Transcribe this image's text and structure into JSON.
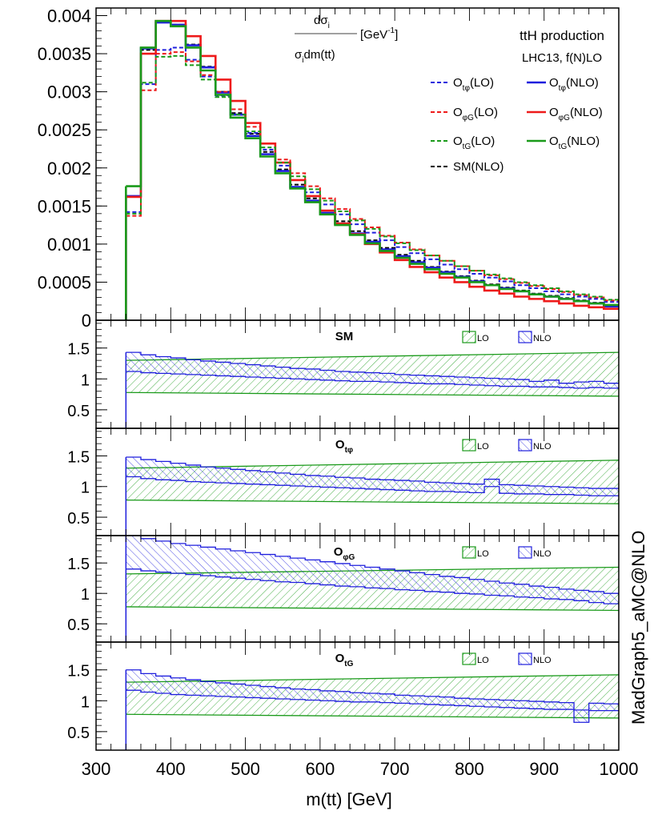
{
  "chart_data": {
    "type": "histogram",
    "xlabel": "m(tt) [GeV]",
    "xlim": [
      300,
      1000
    ],
    "x_ticks": [
      "300",
      "400",
      "500",
      "600",
      "700",
      "800",
      "900",
      "1000"
    ],
    "bin_edges": [
      340,
      360,
      380,
      400,
      420,
      440,
      460,
      480,
      500,
      520,
      540,
      560,
      580,
      600,
      620,
      640,
      660,
      680,
      700,
      720,
      740,
      760,
      780,
      800,
      820,
      840,
      860,
      880,
      900,
      920,
      940,
      960,
      980,
      1000
    ],
    "watermark": "MadGraph5_aMC@NLO",
    "main": {
      "ylabel_num": "dσ",
      "ylabel_num_sub": "i",
      "ylabel_den": "σ",
      "ylabel_den_sub": "i",
      "ylabel_den_rest": "dm(tt)",
      "ylabel_unit": "[GeV",
      "ylabel_unit_exp": "-1",
      "ylabel_unit_close": "]",
      "ylim": [
        0,
        0.0041
      ],
      "y_ticks": [
        "0",
        "0.0005",
        "0.001",
        "0.0015",
        "0.002",
        "0.0025",
        "0.003",
        "0.0035",
        "0.004"
      ],
      "title_line1": "ttH production",
      "title_line2": "LHC13, f(N)LO",
      "legend": [
        {
          "label": "O",
          "sub": "tφ",
          "suffix": "(LO)",
          "color": "#1f1fdd",
          "dash": true
        },
        {
          "label": "O",
          "sub": "tφ",
          "suffix": "(NLO)",
          "color": "#1f1fdd",
          "dash": false
        },
        {
          "label": "O",
          "sub": "φG",
          "suffix": "(LO)",
          "color": "#ee1a1a",
          "dash": true
        },
        {
          "label": "O",
          "sub": "φG",
          "suffix": "(NLO)",
          "color": "#ee1a1a",
          "dash": false
        },
        {
          "label": "O",
          "sub": "tG",
          "suffix": "(LO)",
          "color": "#1a9a1a",
          "dash": true
        },
        {
          "label": "O",
          "sub": "tG",
          "suffix": "(NLO)",
          "color": "#1a9a1a",
          "dash": false
        },
        {
          "label": "SM(NLO)",
          "sub": "",
          "suffix": "",
          "color": "#000000",
          "dash": true
        }
      ],
      "series": [
        {
          "name": "SM(NLO)",
          "color": "#000000",
          "dash": true,
          "values": [
            0.00163,
            0.00355,
            0.00392,
            0.00388,
            0.00362,
            0.00333,
            0.003,
            0.00272,
            0.00245,
            0.00221,
            0.00198,
            0.00178,
            0.0016,
            0.00144,
            0.0013,
            0.00117,
            0.00105,
            0.00095,
            0.00086,
            0.00078,
            0.0007,
            0.00064,
            0.00058,
            0.00052,
            0.00047,
            0.00043,
            0.00039,
            0.00035,
            0.00032,
            0.00029,
            0.00026,
            0.00023,
            0.00018
          ]
        },
        {
          "name": "O_tφ(LO)",
          "color": "#1f1fdd",
          "dash": true,
          "values": [
            0.00142,
            0.0031,
            0.00355,
            0.00358,
            0.00342,
            0.0032,
            0.00295,
            0.0027,
            0.00246,
            0.00224,
            0.00203,
            0.00184,
            0.00168,
            0.00152,
            0.00139,
            0.00126,
            0.00115,
            0.00105,
            0.00096,
            0.00088,
            0.0008,
            0.00073,
            0.00067,
            0.00061,
            0.00056,
            0.00051,
            0.00046,
            0.00042,
            0.00038,
            0.00034,
            0.00031,
            0.00028,
            0.00024
          ]
        },
        {
          "name": "O_tφ(NLO)",
          "color": "#1f1fdd",
          "dash": false,
          "values": [
            0.00163,
            0.00357,
            0.00391,
            0.00388,
            0.00361,
            0.00332,
            0.00299,
            0.0027,
            0.00242,
            0.00218,
            0.00196,
            0.00175,
            0.00157,
            0.00141,
            0.00127,
            0.00114,
            0.00103,
            0.00093,
            0.00084,
            0.00076,
            0.00069,
            0.00063,
            0.00057,
            0.00051,
            0.00046,
            0.00042,
            0.00038,
            0.00034,
            0.00031,
            0.00028,
            0.00025,
            0.00022,
            0.00018
          ]
        },
        {
          "name": "O_φG(LO)",
          "color": "#ee1a1a",
          "dash": true,
          "values": [
            0.00137,
            0.00302,
            0.0035,
            0.00352,
            0.0034,
            0.00322,
            0.003,
            0.00277,
            0.00254,
            0.00232,
            0.00211,
            0.00193,
            0.00176,
            0.0016,
            0.00146,
            0.00133,
            0.00122,
            0.00111,
            0.00102,
            0.00093,
            0.00085,
            0.00078,
            0.00071,
            0.00065,
            0.00059,
            0.00054,
            0.00049,
            0.00045,
            0.00041,
            0.00037,
            0.00033,
            0.0003,
            0.00026
          ]
        },
        {
          "name": "O_φG(NLO)",
          "color": "#ee1a1a",
          "dash": false,
          "values": [
            0.00162,
            0.0035,
            0.00393,
            0.00393,
            0.00373,
            0.00347,
            0.00316,
            0.00288,
            0.00259,
            0.00232,
            0.00207,
            0.00184,
            0.00163,
            0.00144,
            0.00127,
            0.00113,
            0.001,
            0.00089,
            0.00079,
            0.0007,
            0.00063,
            0.00056,
            0.0005,
            0.00044,
            0.00039,
            0.00035,
            0.00031,
            0.00028,
            0.00025,
            0.00022,
            0.00019,
            0.00017,
            0.00015
          ]
        },
        {
          "name": "O_tG(LO)",
          "color": "#1a9a1a",
          "dash": true,
          "values": [
            0.0014,
            0.00312,
            0.00346,
            0.00347,
            0.00335,
            0.00316,
            0.00293,
            0.0027,
            0.00248,
            0.00227,
            0.00207,
            0.00189,
            0.00172,
            0.00157,
            0.00143,
            0.00131,
            0.0012,
            0.0011,
            0.00101,
            0.00092,
            0.00085,
            0.00078,
            0.00071,
            0.00065,
            0.0006,
            0.00055,
            0.0005,
            0.00046,
            0.00042,
            0.00038,
            0.00034,
            0.00031,
            0.00027
          ]
        },
        {
          "name": "O_tG(NLO)",
          "color": "#1a9a1a",
          "dash": false,
          "values": [
            0.00176,
            0.00358,
            0.00393,
            0.00386,
            0.00358,
            0.00328,
            0.00296,
            0.00266,
            0.00239,
            0.00215,
            0.00193,
            0.00173,
            0.00155,
            0.00139,
            0.00125,
            0.00112,
            0.00101,
            0.00091,
            0.00082,
            0.00074,
            0.00067,
            0.00061,
            0.00056,
            0.0005,
            0.00046,
            0.00041,
            0.00038,
            0.00034,
            0.00031,
            0.00028,
            0.00025,
            0.00022,
            0.0002
          ]
        }
      ]
    },
    "ratio_panels": [
      {
        "label": "SM",
        "label_sub": "",
        "ylim": [
          0.2,
          1.95
        ],
        "y_ticks": [
          "0.5",
          "1",
          "1.5"
        ],
        "legend_lo": "LO",
        "legend_nlo": "NLO",
        "lo_band": {
          "low_start": 0.78,
          "low_end": 0.72,
          "high_start": 1.3,
          "high_end": 1.43
        },
        "nlo_low": [
          1.12,
          1.1,
          1.09,
          1.08,
          1.07,
          1.06,
          1.05,
          1.04,
          1.03,
          1.02,
          1.01,
          1.0,
          0.99,
          0.98,
          0.97,
          0.96,
          0.96,
          0.95,
          0.94,
          0.93,
          0.92,
          0.92,
          0.91,
          0.9,
          0.89,
          0.88,
          0.88,
          0.87,
          0.87,
          0.86,
          0.85,
          0.86,
          0.85
        ],
        "nlo_high": [
          1.43,
          1.39,
          1.36,
          1.34,
          1.31,
          1.29,
          1.27,
          1.25,
          1.23,
          1.21,
          1.19,
          1.17,
          1.16,
          1.14,
          1.12,
          1.11,
          1.1,
          1.09,
          1.07,
          1.06,
          1.05,
          1.04,
          1.03,
          1.02,
          1.01,
          1.0,
          0.99,
          0.96,
          0.98,
          0.93,
          0.95,
          0.96,
          0.93
        ]
      },
      {
        "label": "O",
        "label_sub": "tφ",
        "ylim": [
          0.2,
          1.95
        ],
        "y_ticks": [
          "0.5",
          "1",
          "1.5"
        ],
        "legend_lo": "LO",
        "legend_nlo": "NLO",
        "lo_band": {
          "low_start": 0.78,
          "low_end": 0.72,
          "high_start": 1.3,
          "high_end": 1.43
        },
        "nlo_low": [
          1.16,
          1.13,
          1.11,
          1.1,
          1.08,
          1.07,
          1.06,
          1.05,
          1.04,
          1.03,
          1.02,
          1.01,
          1.0,
          0.99,
          0.98,
          0.97,
          0.96,
          0.95,
          0.94,
          0.93,
          0.92,
          0.92,
          0.91,
          0.9,
          1.0,
          0.89,
          0.88,
          0.88,
          0.87,
          0.87,
          0.86,
          0.85,
          0.85
        ],
        "nlo_high": [
          1.48,
          1.44,
          1.41,
          1.38,
          1.35,
          1.32,
          1.3,
          1.28,
          1.26,
          1.24,
          1.22,
          1.2,
          1.18,
          1.17,
          1.15,
          1.14,
          1.12,
          1.11,
          1.1,
          1.09,
          1.07,
          1.06,
          1.05,
          1.04,
          1.12,
          1.03,
          1.02,
          1.01,
          1.0,
          0.99,
          0.98,
          0.97,
          0.97
        ]
      },
      {
        "label": "O",
        "label_sub": "φG",
        "ylim": [
          0.2,
          1.95
        ],
        "y_ticks": [
          "0.5",
          "1",
          "1.5"
        ],
        "legend_lo": "LO",
        "legend_nlo": "NLO",
        "lo_band": {
          "low_start": 0.78,
          "low_end": 0.72,
          "high_start": 1.32,
          "high_end": 1.43
        },
        "nlo_low": [
          1.4,
          1.37,
          1.35,
          1.33,
          1.31,
          1.29,
          1.27,
          1.25,
          1.23,
          1.21,
          1.19,
          1.18,
          1.16,
          1.14,
          1.12,
          1.11,
          1.09,
          1.08,
          1.06,
          1.05,
          1.03,
          1.02,
          1.0,
          0.99,
          0.97,
          0.96,
          0.94,
          0.93,
          0.91,
          0.9,
          0.88,
          0.85,
          0.83
        ],
        "nlo_high": [
          1.95,
          1.9,
          1.86,
          1.82,
          1.79,
          1.76,
          1.73,
          1.7,
          1.67,
          1.64,
          1.61,
          1.58,
          1.55,
          1.52,
          1.49,
          1.46,
          1.43,
          1.4,
          1.37,
          1.34,
          1.31,
          1.28,
          1.26,
          1.23,
          1.2,
          1.17,
          1.15,
          1.12,
          1.1,
          1.07,
          1.05,
          1.03,
          1.0
        ]
      },
      {
        "label": "O",
        "label_sub": "tG",
        "ylim": [
          0.2,
          1.95
        ],
        "y_ticks": [
          "0.5",
          "1",
          "1.5"
        ],
        "legend_lo": "LO",
        "legend_nlo": "NLO",
        "lo_band": {
          "low_start": 0.78,
          "low_end": 0.72,
          "high_start": 1.3,
          "high_end": 1.42
        },
        "nlo_low": [
          1.17,
          1.14,
          1.12,
          1.1,
          1.09,
          1.08,
          1.07,
          1.06,
          1.05,
          1.04,
          1.03,
          1.02,
          1.01,
          1.0,
          0.99,
          0.98,
          0.98,
          0.97,
          0.96,
          0.95,
          0.94,
          0.93,
          0.92,
          0.91,
          0.9,
          0.89,
          0.88,
          0.87,
          0.86,
          0.86,
          0.65,
          0.84,
          0.84
        ],
        "nlo_high": [
          1.5,
          1.44,
          1.4,
          1.37,
          1.34,
          1.31,
          1.29,
          1.27,
          1.25,
          1.23,
          1.21,
          1.19,
          1.18,
          1.16,
          1.15,
          1.13,
          1.12,
          1.11,
          1.09,
          1.08,
          1.07,
          1.06,
          1.04,
          1.03,
          1.02,
          1.01,
          1.0,
          0.99,
          0.98,
          0.97,
          0.85,
          0.96,
          0.95
        ]
      }
    ]
  }
}
